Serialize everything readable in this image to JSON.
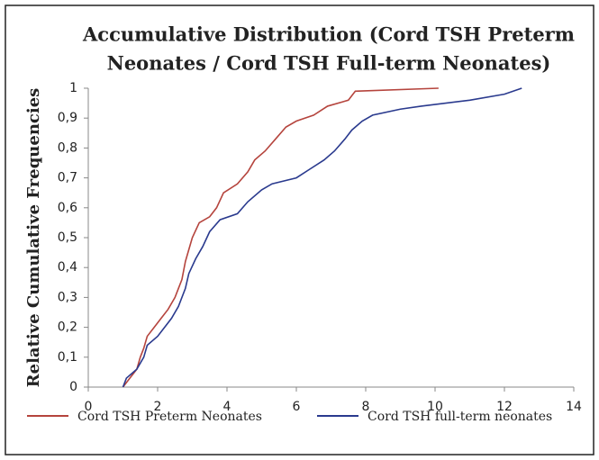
{
  "chart_data": {
    "type": "line",
    "title": [
      "Accumulative Distribution  (Cord TSH Preterm",
      "Neonates / Cord TSH Full-term Neonates)"
    ],
    "y_label": "Relative Cumulative Frequencies",
    "xlim": [
      0,
      14
    ],
    "xticks": [
      0,
      2,
      4,
      6,
      8,
      10,
      12,
      14
    ],
    "ylim": [
      0,
      1
    ],
    "yticks": [
      0,
      {
        "value": 0.1,
        "label": "0,1"
      },
      {
        "value": 0.2,
        "label": "0,2"
      },
      {
        "value": 0.3,
        "label": "0,3"
      },
      {
        "value": 0.4,
        "label": "0,4"
      },
      {
        "value": 0.5,
        "label": "0,5"
      },
      {
        "value": 0.6,
        "label": "0,6"
      },
      {
        "value": 0.7,
        "label": "0,7"
      },
      {
        "value": 0.8,
        "label": "0,8"
      },
      {
        "value": 0.9,
        "label": "0,9"
      },
      1
    ],
    "grid": false,
    "legend": "bottom",
    "series": [
      {
        "name": "Cord TSH Preterm Neonates",
        "color": "#b5443d",
        "x": [
          1,
          1.2,
          1.4,
          1.5,
          1.6,
          1.7,
          1.9,
          2.1,
          2.3,
          2.5,
          2.6,
          2.7,
          2.8,
          2.9,
          3.0,
          3.2,
          3.5,
          3.7,
          3.9,
          4.3,
          4.6,
          4.8,
          5.1,
          5.4,
          5.7,
          6.0,
          6.5,
          6.9,
          7.5,
          7.7,
          10.1
        ],
        "values": [
          0,
          0.03,
          0.06,
          0.1,
          0.13,
          0.17,
          0.2,
          0.23,
          0.26,
          0.3,
          0.33,
          0.36,
          0.42,
          0.46,
          0.5,
          0.55,
          0.57,
          0.6,
          0.65,
          0.68,
          0.72,
          0.76,
          0.79,
          0.83,
          0.87,
          0.89,
          0.91,
          0.94,
          0.96,
          0.99,
          1.0
        ]
      },
      {
        "name": "Cord TSH full-term neonates",
        "color": "#2a3a8e",
        "x": [
          1,
          1.1,
          1.4,
          1.6,
          1.7,
          2.0,
          2.2,
          2.4,
          2.6,
          2.8,
          2.9,
          3.1,
          3.3,
          3.5,
          3.8,
          4.3,
          4.6,
          5.0,
          5.3,
          6.0,
          6.4,
          6.8,
          7.1,
          7.4,
          7.6,
          7.9,
          8.2,
          9.0,
          9.6,
          11.0,
          12.0,
          12.5
        ],
        "values": [
          0,
          0.03,
          0.06,
          0.1,
          0.14,
          0.17,
          0.2,
          0.23,
          0.27,
          0.33,
          0.38,
          0.43,
          0.47,
          0.52,
          0.56,
          0.58,
          0.62,
          0.66,
          0.68,
          0.7,
          0.73,
          0.76,
          0.79,
          0.83,
          0.86,
          0.89,
          0.91,
          0.93,
          0.94,
          0.96,
          0.98,
          1.0
        ]
      }
    ]
  }
}
